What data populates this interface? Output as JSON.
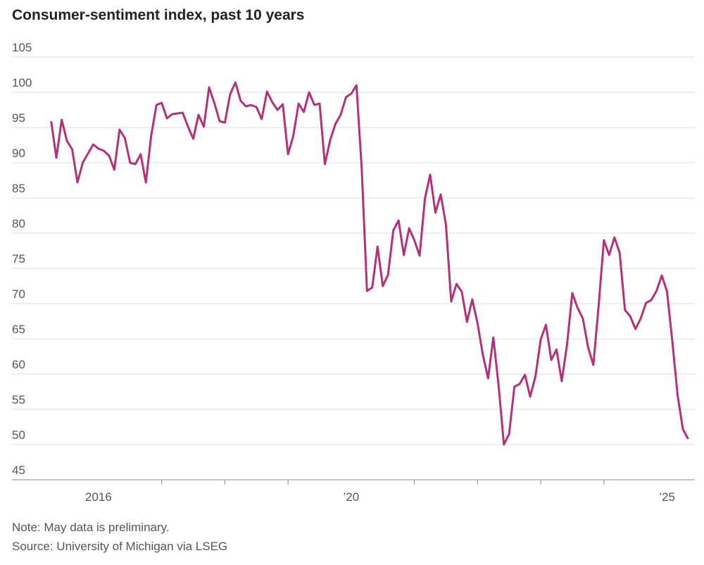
{
  "chart_data": {
    "type": "line",
    "title": "Consumer-sentiment index, past 10 years",
    "notes": [
      "Note: May data is preliminary.",
      "Source: University of Michigan via LSEG"
    ],
    "x": [
      2015.25,
      2015.333,
      2015.417,
      2015.5,
      2015.583,
      2015.667,
      2015.75,
      2015.833,
      2015.917,
      2016,
      2016.083,
      2016.167,
      2016.25,
      2016.333,
      2016.417,
      2016.5,
      2016.583,
      2016.667,
      2016.75,
      2016.833,
      2016.917,
      2017,
      2017.083,
      2017.167,
      2017.25,
      2017.333,
      2017.417,
      2017.5,
      2017.583,
      2017.667,
      2017.75,
      2017.833,
      2017.917,
      2018,
      2018.083,
      2018.167,
      2018.25,
      2018.333,
      2018.417,
      2018.5,
      2018.583,
      2018.667,
      2018.75,
      2018.833,
      2018.917,
      2019,
      2019.083,
      2019.167,
      2019.25,
      2019.333,
      2019.417,
      2019.5,
      2019.583,
      2019.667,
      2019.75,
      2019.833,
      2019.917,
      2020,
      2020.083,
      2020.167,
      2020.25,
      2020.333,
      2020.417,
      2020.5,
      2020.583,
      2020.667,
      2020.75,
      2020.833,
      2020.917,
      2021,
      2021.083,
      2021.167,
      2021.25,
      2021.333,
      2021.417,
      2021.5,
      2021.583,
      2021.667,
      2021.75,
      2021.833,
      2021.917,
      2022,
      2022.083,
      2022.167,
      2022.25,
      2022.333,
      2022.417,
      2022.5,
      2022.583,
      2022.667,
      2022.75,
      2022.833,
      2022.917,
      2023,
      2023.083,
      2023.167,
      2023.25,
      2023.333,
      2023.417,
      2023.5,
      2023.583,
      2023.667,
      2023.75,
      2023.833,
      2023.917,
      2024,
      2024.083,
      2024.167,
      2024.25,
      2024.333,
      2024.417,
      2024.5,
      2024.583,
      2024.667,
      2024.75,
      2024.833,
      2024.917,
      2025,
      2025.083,
      2025.167,
      2025.25,
      2025.333
    ],
    "series": [
      {
        "name": "Consumer-sentiment index",
        "color": "#b5307a",
        "values": [
          95.9,
          90.7,
          96.1,
          93.1,
          91.9,
          87.2,
          90.0,
          91.3,
          92.6,
          92.0,
          91.7,
          91.0,
          89.0,
          94.7,
          93.5,
          90.0,
          89.8,
          91.2,
          87.2,
          93.8,
          98.2,
          98.5,
          96.3,
          96.9,
          97.0,
          97.1,
          95.1,
          93.4,
          96.8,
          95.1,
          100.7,
          98.5,
          95.9,
          95.7,
          99.7,
          101.4,
          98.8,
          98.0,
          98.2,
          97.9,
          96.2,
          100.1,
          98.6,
          97.5,
          98.3,
          91.2,
          93.8,
          98.4,
          97.2,
          100.0,
          98.2,
          98.4,
          89.8,
          93.2,
          95.5,
          96.8,
          99.3,
          99.8,
          101.0,
          89.1,
          71.8,
          72.3,
          78.1,
          72.5,
          74.1,
          80.4,
          81.8,
          76.9,
          80.7,
          79.0,
          76.8,
          84.9,
          88.3,
          82.9,
          85.5,
          81.2,
          70.3,
          72.8,
          71.7,
          67.4,
          70.6,
          67.2,
          62.8,
          59.4,
          65.2,
          58.4,
          50.0,
          51.5,
          58.2,
          58.6,
          59.9,
          56.8,
          59.7,
          64.9,
          67.0,
          62.0,
          63.5,
          59.0,
          64.2,
          71.5,
          69.4,
          67.9,
          63.8,
          61.3,
          69.7,
          79.0,
          76.9,
          79.4,
          77.2,
          69.1,
          68.2,
          66.4,
          67.9,
          70.1,
          70.5,
          71.8,
          74.0,
          71.7,
          64.7,
          57.0,
          52.2,
          50.8
        ]
      }
    ],
    "xlim": [
      2014.63,
      2025.44
    ],
    "xticks": [
      {
        "value": 2016,
        "label": "2016"
      },
      {
        "value": 2017,
        "label": null
      },
      {
        "value": 2018,
        "label": null
      },
      {
        "value": 2019,
        "label": null
      },
      {
        "value": 2020,
        "label": "’20"
      },
      {
        "value": 2021,
        "label": null
      },
      {
        "value": 2022,
        "label": null
      },
      {
        "value": 2023,
        "label": null
      },
      {
        "value": 2024,
        "label": null
      },
      {
        "value": 2025,
        "label": "’25"
      }
    ],
    "ylim": [
      45,
      105
    ],
    "yticks": [
      45,
      50,
      55,
      60,
      65,
      70,
      75,
      80,
      85,
      90,
      95,
      100,
      105
    ],
    "grid": true
  }
}
